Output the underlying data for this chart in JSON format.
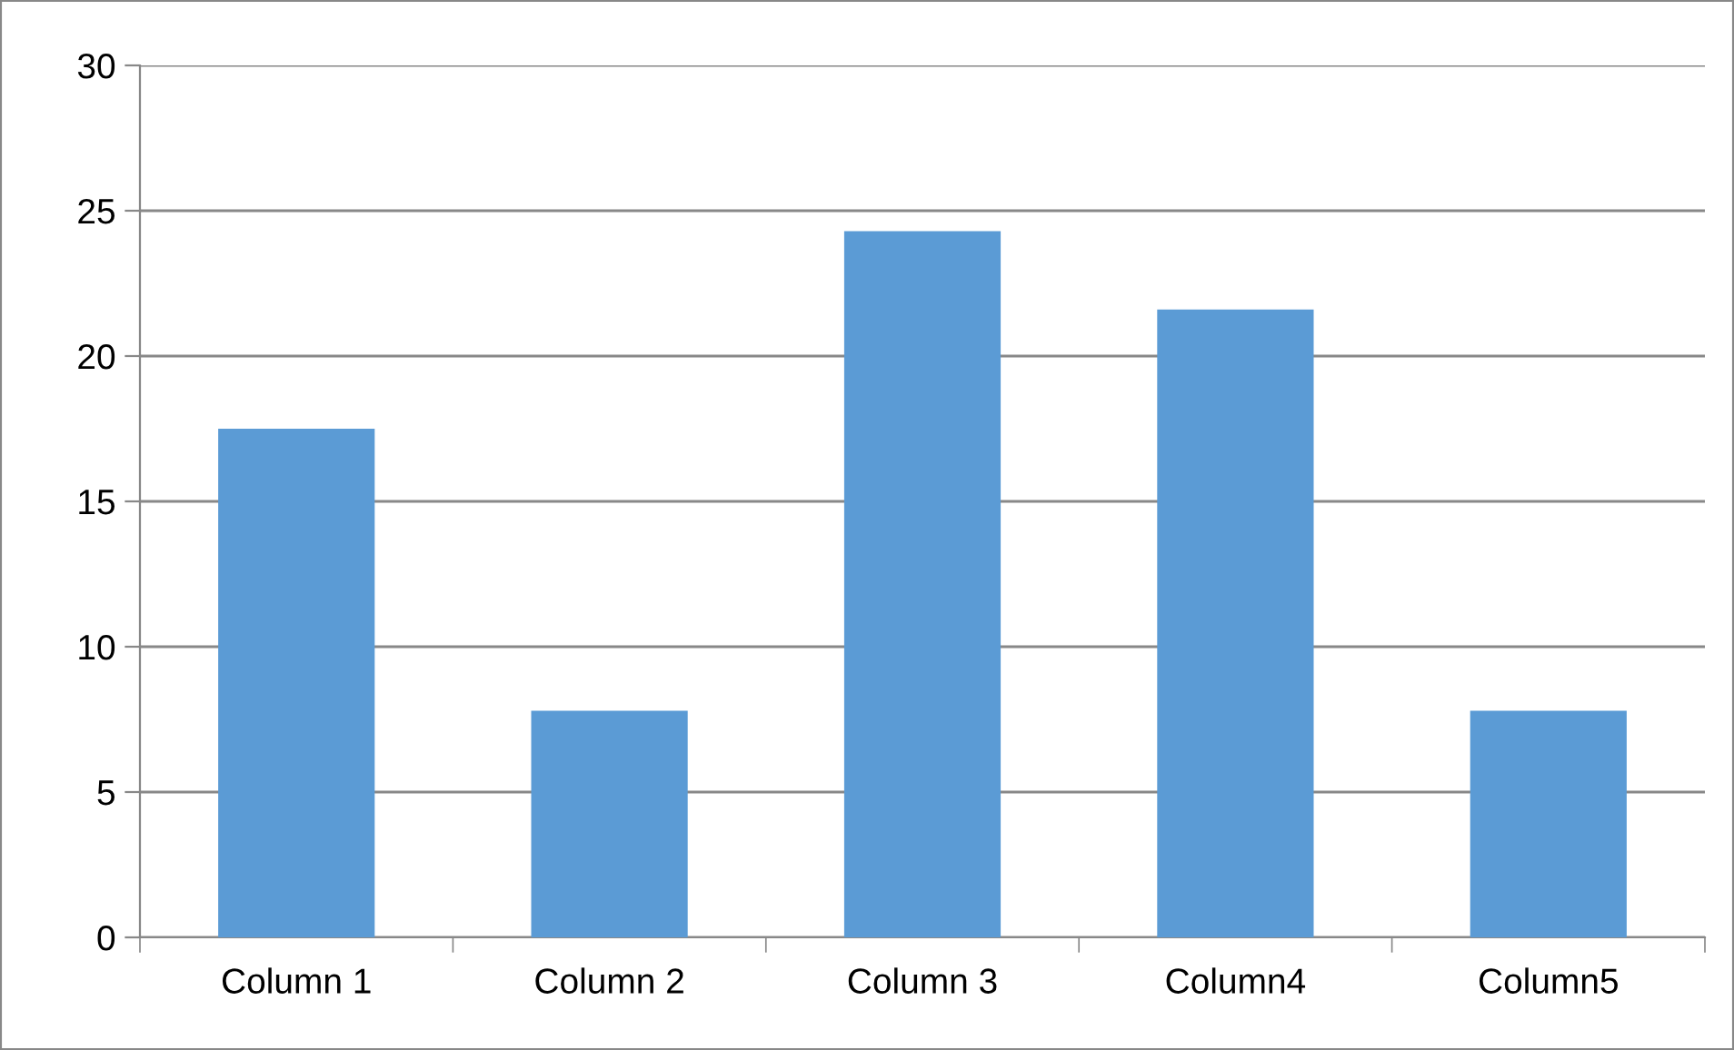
{
  "chart_data": {
    "type": "bar",
    "categories": [
      "Column 1",
      "Column 2",
      "Column 3",
      "Column4",
      "Column5"
    ],
    "values": [
      17.5,
      7.8,
      24.3,
      21.6,
      7.8
    ],
    "color": "#5b9bd5",
    "ylim": [
      0,
      30
    ],
    "yticks": [
      0,
      5,
      10,
      15,
      20,
      25,
      30
    ],
    "grid": "y",
    "legend": false
  }
}
